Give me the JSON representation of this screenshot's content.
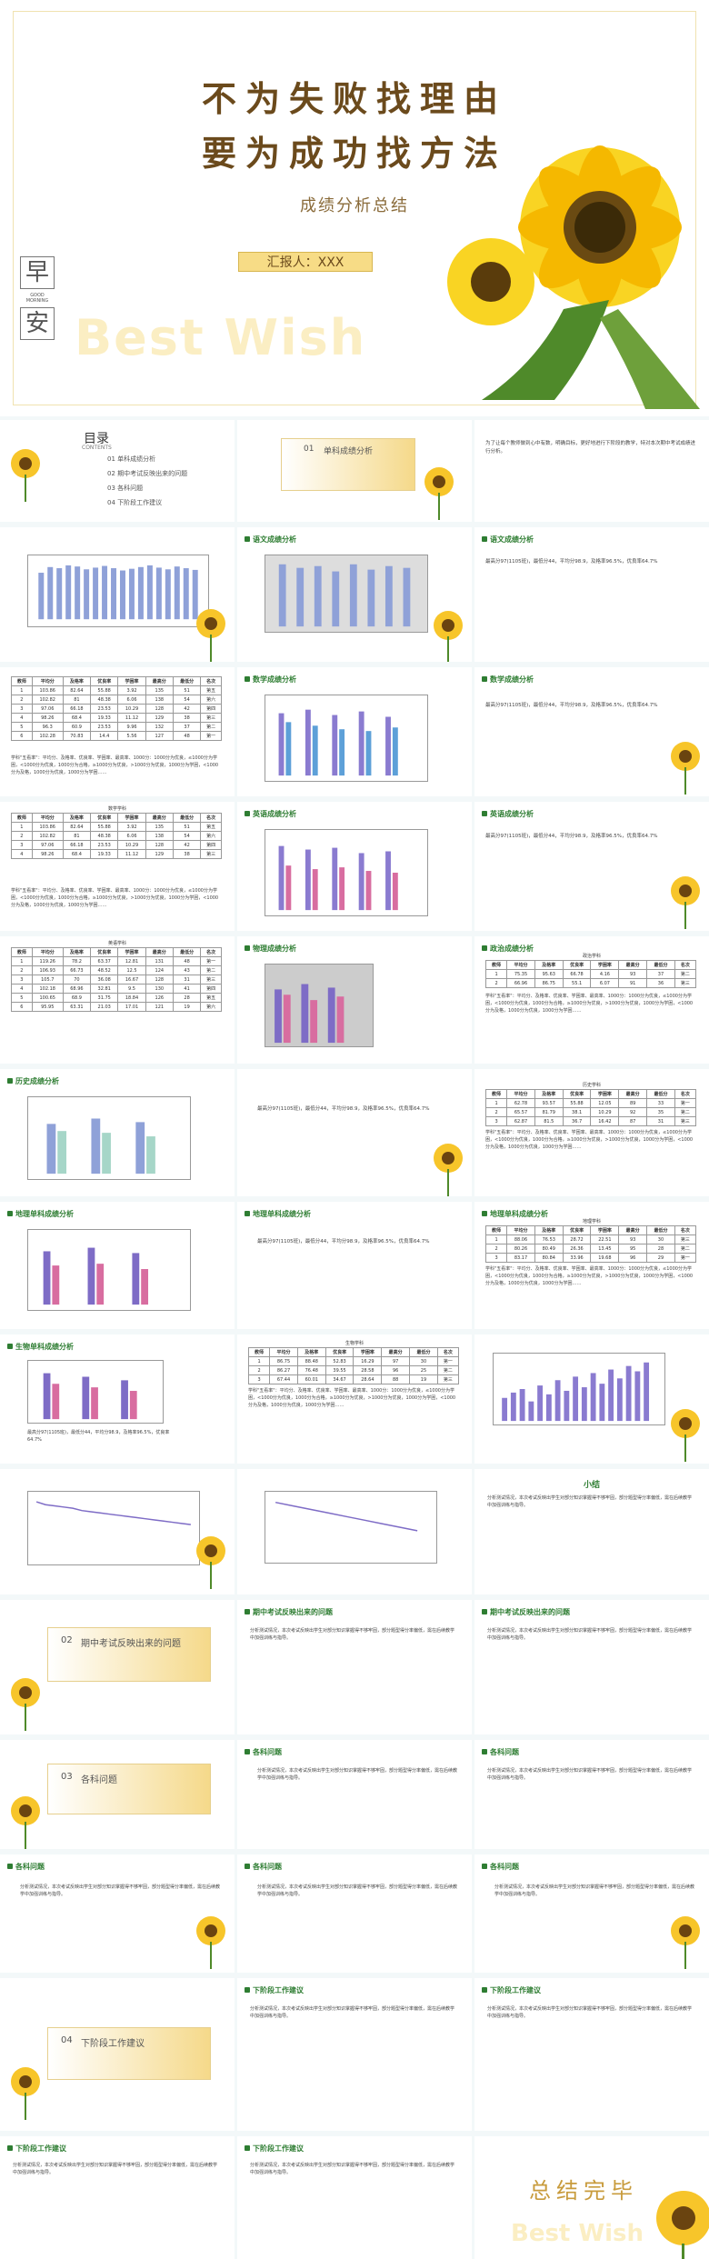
{
  "cover": {
    "title_line1": "不为失败找理由",
    "title_line2": "要为成功找方法",
    "subtitle": "成绩分析总结",
    "reporter": "汇报人：XXX",
    "morning_top": "早",
    "morning_mid": "GOOD MORNING",
    "morning_bottom": "安",
    "bestwish": "Best Wish"
  },
  "toc": {
    "title": "目录",
    "subtitle": "CONTENTS",
    "items": [
      "01 单科成绩分析",
      "02 期中考试反映出来的问题",
      "03 各科问题",
      "04 下阶段工作建议"
    ]
  },
  "section1": {
    "num": "01",
    "title": "单科成绩分析"
  },
  "section2": {
    "num": "02",
    "title": "期中考试反映出来的问题"
  },
  "section3": {
    "num": "03",
    "title": "各科问题"
  },
  "section4": {
    "num": "04",
    "title": "下阶段工作建议"
  },
  "headings": {
    "chinese": "语文成绩分析",
    "math": "数学成绩分析",
    "english": "英语成绩分析",
    "physics": "物理成绩分析",
    "chemistry": "化学成绩分析",
    "history": "历史成绩分析",
    "geography": "地理单科成绩分析",
    "biology": "生物单科成绩分析",
    "politics": "政治成绩分析",
    "summary": "小结",
    "problems": "期中考试反映出来的问题",
    "subjects": "各科问题",
    "next": "下阶段工作建议"
  },
  "intro_text": "为了让每个教师做到心中有数，明确目标，更好地进行下阶段的教学，特对本次期中考试成绩进行分析。",
  "table_headers": [
    "教师",
    "平均分",
    "及格率",
    "优良率",
    "学困率",
    "最高分",
    "最低分",
    "名次"
  ],
  "math_table": {
    "title": "数学学科",
    "rows": [
      [
        "1",
        "103.86",
        "82.64",
        "55.88",
        "3.92",
        "135",
        "51",
        "第五"
      ],
      [
        "2",
        "102.82",
        "81",
        "48.38",
        "6.06",
        "138",
        "54",
        "第六"
      ],
      [
        "3",
        "97.06",
        "66.18",
        "23.53",
        "10.29",
        "128",
        "42",
        "第四"
      ],
      [
        "4",
        "98.26",
        "68.4",
        "19.33",
        "11.12",
        "129",
        "38",
        "第三"
      ],
      [
        "5",
        "96.3",
        "60.9",
        "23.53",
        "9.96",
        "132",
        "37",
        "第二"
      ],
      [
        "6",
        "102.28",
        "70.83",
        "14.4",
        "5.56",
        "127",
        "48",
        "第一"
      ]
    ]
  },
  "english_table": {
    "title": "英语学科",
    "rows": [
      [
        "1",
        "119.26",
        "78.2",
        "63.37",
        "12.81",
        "131",
        "48",
        "第一"
      ],
      [
        "2",
        "106.93",
        "66.73",
        "48.52",
        "12.5",
        "124",
        "43",
        "第二"
      ],
      [
        "3",
        "105.7",
        "70",
        "36.08",
        "16.67",
        "128",
        "31",
        "第三"
      ],
      [
        "4",
        "102.18",
        "68.96",
        "32.81",
        "9.5",
        "130",
        "41",
        "第四"
      ],
      [
        "5",
        "100.65",
        "68.9",
        "31.75",
        "18.84",
        "126",
        "28",
        "第五"
      ],
      [
        "6",
        "95.95",
        "63.31",
        "21.03",
        "17.01",
        "121",
        "19",
        "第六"
      ]
    ]
  },
  "politics_table": {
    "title": "政治学科",
    "rows": [
      [
        "1",
        "75.35",
        "95.63",
        "66.78",
        "4.16",
        "93",
        "37",
        "第二"
      ],
      [
        "2",
        "66.96",
        "86.75",
        "55.1",
        "6.07",
        "91",
        "36",
        "第三"
      ]
    ]
  },
  "history_table": {
    "title": "历史学科",
    "rows": [
      [
        "1",
        "62.78",
        "93.57",
        "55.88",
        "12.05",
        "89",
        "33",
        "第一"
      ],
      [
        "2",
        "65.57",
        "81.79",
        "38.1",
        "10.29",
        "92",
        "35",
        "第二"
      ],
      [
        "3",
        "62.87",
        "81.5",
        "36.7",
        "16.42",
        "87",
        "31",
        "第三"
      ]
    ]
  },
  "geo_table": {
    "title": "地理学科",
    "rows": [
      [
        "1",
        "88.06",
        "76.53",
        "28.72",
        "22.51",
        "93",
        "30",
        "第三"
      ],
      [
        "2",
        "80.26",
        "80.49",
        "26.36",
        "13.45",
        "95",
        "28",
        "第二"
      ],
      [
        "3",
        "83.17",
        "80.84",
        "33.96",
        "19.68",
        "96",
        "29",
        "第一"
      ]
    ]
  },
  "bio_table": {
    "title": "生物学科",
    "rows": [
      [
        "1",
        "86.75",
        "88.48",
        "52.83",
        "16.29",
        "97",
        "30",
        "第一"
      ],
      [
        "2",
        "86.27",
        "76.48",
        "39.55",
        "28.58",
        "96",
        "25",
        "第二"
      ],
      [
        "3",
        "67.44",
        "60.01",
        "34.67",
        "28.64",
        "88",
        "19",
        "第三"
      ]
    ]
  },
  "chinese_note": "最高分97(1105班)，最低分44，平均分98.9，及格率96.5%，优良率64.7%",
  "long_note": "学科\"五看率\"：平均分、及格率、优良率、学困率、最高率、1000分：1000分为优良，≤1000分为学困，<1000分为优良，1000分为合格，≥1000分为优良，>1000分为优良，1000分为学困，<1000分为及格，1000分为优良，1000分为学困……",
  "problem_text": "分析测试情况，本次考试反映出学生对部分知识掌握得不够牢固，部分题型得分率偏低，需在后续教学中加强训练与指导。",
  "end": {
    "title": "总结完毕",
    "bestwish": "Best Wish"
  },
  "chart_data": [
    {
      "type": "bar",
      "title": "",
      "categories": [
        "1",
        "2",
        "3",
        "4",
        "5",
        "6",
        "7",
        "8",
        "9",
        "10",
        "11",
        "12",
        "13",
        "14",
        "15",
        "16",
        "17",
        "18"
      ],
      "series": [
        {
          "name": "",
          "values": [
            82,
            92,
            90,
            95,
            93,
            88,
            91,
            94,
            90,
            86,
            89,
            92,
            95,
            91,
            88,
            93,
            90,
            87
          ]
        }
      ],
      "ylim": [
        0,
        100
      ]
    },
    {
      "type": "line",
      "title": "",
      "categories": [
        "1",
        "2",
        "3",
        "4",
        "5",
        "6",
        "7",
        "8",
        "9",
        "10",
        "11",
        "12",
        "13",
        "14",
        "15",
        "16",
        "17",
        "18"
      ],
      "series": [
        {
          "name": "",
          "values": [
            95,
            90,
            88,
            86,
            84,
            80,
            78,
            76,
            74,
            72,
            70,
            68,
            66,
            64,
            62,
            60,
            58,
            56
          ]
        }
      ],
      "ylim": [
        0,
        100
      ]
    }
  ]
}
